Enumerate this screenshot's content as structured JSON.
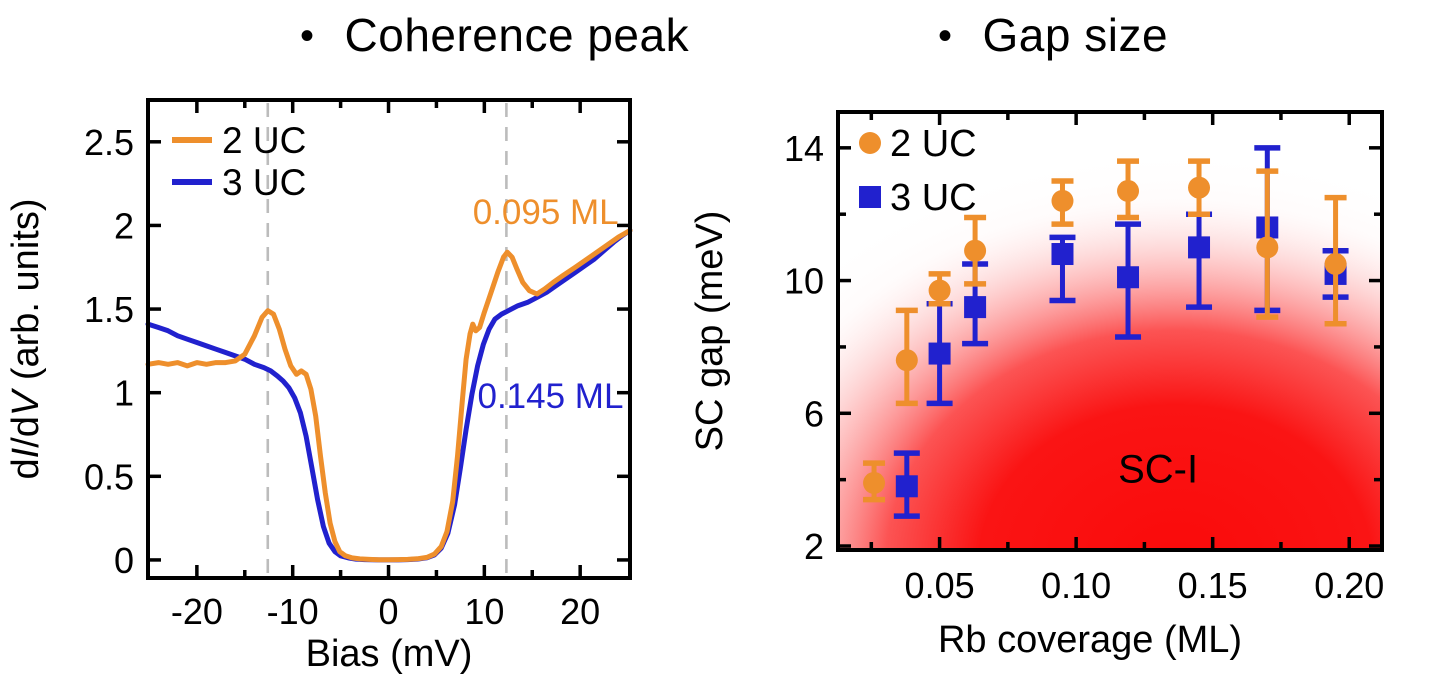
{
  "titles": {
    "bullet": "•",
    "left": "Coherence peak",
    "right": "Gap size"
  },
  "colors": {
    "two_uc": "#EE8F2C",
    "three_uc": "#2121CE",
    "dashed_line": "#BCBCBC",
    "axis": "#000000",
    "red_core": "#FA0A0A",
    "background": "#FFFFFF"
  },
  "chart_data": [
    {
      "type": "line",
      "title": "Coherence peak",
      "xlabel": "Bias (mV)",
      "ylabel": "dI/dV (arb. units)",
      "ylabel_parts": [
        [
          "d",
          false
        ],
        [
          "I",
          true
        ],
        [
          "/d",
          false
        ],
        [
          "V",
          true
        ],
        [
          " (arb. units)",
          false
        ]
      ],
      "xlim": [
        -25.1,
        25.2
      ],
      "ylim": [
        -0.108,
        2.75
      ],
      "grid": false,
      "x_ticks": {
        "major": [
          -20,
          -10,
          0,
          10,
          20
        ],
        "major_labels": [
          "-20",
          "-10",
          "0",
          "10",
          "20"
        ],
        "minor": [
          -15,
          -5,
          5,
          15
        ]
      },
      "y_ticks": {
        "major": [
          0,
          0.5,
          1,
          1.5,
          2,
          2.5
        ],
        "major_labels": [
          "0",
          "0.5",
          "1",
          "1.5",
          "2",
          "2.5"
        ],
        "minor": []
      },
      "legend": {
        "position": "top-left",
        "entries": [
          "2 UC",
          "3 UC"
        ]
      },
      "dashed_vlines": [
        -12.6,
        12.3
      ],
      "annotations": [
        {
          "text": "0.095 ML",
          "x": 16.4,
          "y": 2.08,
          "series": "2 UC"
        },
        {
          "text": "0.145 ML",
          "x": 16.9,
          "y": 0.98,
          "series": "3 UC"
        }
      ],
      "series": [
        {
          "name": "2 UC",
          "color": "two_uc",
          "points": [
            [
              -25.1,
              1.17
            ],
            [
              -24,
              1.18
            ],
            [
              -23,
              1.17
            ],
            [
              -22,
              1.18
            ],
            [
              -21,
              1.16
            ],
            [
              -20,
              1.18
            ],
            [
              -19,
              1.17
            ],
            [
              -18,
              1.18
            ],
            [
              -17,
              1.18
            ],
            [
              -16,
              1.19
            ],
            [
              -15,
              1.23
            ],
            [
              -14,
              1.34
            ],
            [
              -13.2,
              1.45
            ],
            [
              -12.6,
              1.49
            ],
            [
              -12,
              1.47
            ],
            [
              -11.4,
              1.38
            ],
            [
              -10.8,
              1.26
            ],
            [
              -10.2,
              1.16
            ],
            [
              -9.6,
              1.11
            ],
            [
              -9.1,
              1.13
            ],
            [
              -8.6,
              1.11
            ],
            [
              -8.1,
              1.02
            ],
            [
              -7.6,
              0.86
            ],
            [
              -7.1,
              0.62
            ],
            [
              -6.6,
              0.4
            ],
            [
              -6.1,
              0.22
            ],
            [
              -5.6,
              0.11
            ],
            [
              -5.1,
              0.05
            ],
            [
              -4.5,
              0.025
            ],
            [
              -3.8,
              0.012
            ],
            [
              -3,
              0.006
            ],
            [
              -2,
              0.003
            ],
            [
              -1,
              0.001
            ],
            [
              0,
              0.001
            ],
            [
              1,
              0.002
            ],
            [
              2,
              0.003
            ],
            [
              3,
              0.007
            ],
            [
              4,
              0.015
            ],
            [
              4.8,
              0.035
            ],
            [
              5.5,
              0.08
            ],
            [
              6.1,
              0.17
            ],
            [
              6.7,
              0.35
            ],
            [
              7.2,
              0.62
            ],
            [
              7.7,
              0.95
            ],
            [
              8.1,
              1.2
            ],
            [
              8.5,
              1.35
            ],
            [
              8.8,
              1.41
            ],
            [
              9.1,
              1.37
            ],
            [
              9.5,
              1.39
            ],
            [
              10,
              1.48
            ],
            [
              10.7,
              1.6
            ],
            [
              11.4,
              1.72
            ],
            [
              12,
              1.81
            ],
            [
              12.4,
              1.84
            ],
            [
              12.9,
              1.81
            ],
            [
              13.4,
              1.74
            ],
            [
              14,
              1.66
            ],
            [
              14.7,
              1.61
            ],
            [
              15.5,
              1.59
            ],
            [
              16.3,
              1.62
            ],
            [
              17.2,
              1.66
            ],
            [
              18.2,
              1.7
            ],
            [
              19.5,
              1.75
            ],
            [
              21,
              1.81
            ],
            [
              22.5,
              1.87
            ],
            [
              24,
              1.93
            ],
            [
              25.2,
              1.97
            ]
          ]
        },
        {
          "name": "3 UC",
          "color": "three_uc",
          "points": [
            [
              -25.1,
              1.41
            ],
            [
              -24,
              1.39
            ],
            [
              -23,
              1.37
            ],
            [
              -22,
              1.34
            ],
            [
              -21,
              1.32
            ],
            [
              -20,
              1.3
            ],
            [
              -19,
              1.28
            ],
            [
              -18,
              1.26
            ],
            [
              -17,
              1.24
            ],
            [
              -16,
              1.22
            ],
            [
              -15,
              1.2
            ],
            [
              -14,
              1.17
            ],
            [
              -13,
              1.15
            ],
            [
              -12.3,
              1.13
            ],
            [
              -11.6,
              1.1
            ],
            [
              -11,
              1.07
            ],
            [
              -10.4,
              1.03
            ],
            [
              -9.8,
              0.97
            ],
            [
              -9.2,
              0.88
            ],
            [
              -8.6,
              0.74
            ],
            [
              -8,
              0.55
            ],
            [
              -7.4,
              0.36
            ],
            [
              -6.8,
              0.2
            ],
            [
              -6.2,
              0.1
            ],
            [
              -5.6,
              0.05
            ],
            [
              -5,
              0.025
            ],
            [
              -4.2,
              0.012
            ],
            [
              -3.4,
              0.005
            ],
            [
              -2.5,
              0.002
            ],
            [
              -1,
              0
            ],
            [
              0,
              0
            ],
            [
              1,
              0
            ],
            [
              2,
              0.002
            ],
            [
              3,
              0.005
            ],
            [
              4,
              0.013
            ],
            [
              4.8,
              0.03
            ],
            [
              5.5,
              0.07
            ],
            [
              6.2,
              0.16
            ],
            [
              6.9,
              0.33
            ],
            [
              7.5,
              0.55
            ],
            [
              8.1,
              0.78
            ],
            [
              8.7,
              0.99
            ],
            [
              9.3,
              1.16
            ],
            [
              9.9,
              1.29
            ],
            [
              10.5,
              1.38
            ],
            [
              11.1,
              1.44
            ],
            [
              11.8,
              1.47
            ],
            [
              12.5,
              1.49
            ],
            [
              13.5,
              1.52
            ],
            [
              14.5,
              1.54
            ],
            [
              15.5,
              1.57
            ],
            [
              16.5,
              1.6
            ],
            [
              17.5,
              1.64
            ],
            [
              18.5,
              1.68
            ],
            [
              19.5,
              1.72
            ],
            [
              20.5,
              1.76
            ],
            [
              21.5,
              1.8
            ],
            [
              22.5,
              1.85
            ],
            [
              23.5,
              1.9
            ],
            [
              24.4,
              1.94
            ],
            [
              25.2,
              1.97
            ]
          ]
        }
      ]
    },
    {
      "type": "scatter",
      "title": "Gap size",
      "xlabel": "Rb coverage (ML)",
      "ylabel": "SC gap (meV)",
      "xlim": [
        0.0128,
        0.212
      ],
      "ylim": [
        1.88,
        15.08
      ],
      "grid": false,
      "x_ticks": {
        "major": [
          0.05,
          0.1,
          0.15,
          0.2
        ],
        "major_labels": [
          "0.05",
          "0.10",
          "0.15",
          "0.20"
        ],
        "minor": [
          0.025,
          0.075,
          0.125,
          0.175
        ]
      },
      "y_ticks": {
        "major": [
          2,
          6,
          10,
          14
        ],
        "major_labels": [
          "2",
          "6",
          "10",
          "14"
        ],
        "minor": [
          4,
          8,
          12
        ]
      },
      "legend": {
        "position": "top-left",
        "entries": [
          "2 UC",
          "3 UC"
        ]
      },
      "region_label": {
        "text": "SC-I",
        "x": 0.13,
        "y": 4.3
      },
      "background_region": {
        "label": "SC-I",
        "style": "red radial gradient, deepest at bottom center-right, fading to white toward top"
      },
      "series": [
        {
          "name": "2 UC",
          "marker": "circle",
          "color": "two_uc",
          "points": [
            {
              "x": 0.026,
              "y": 3.9,
              "err_lo": 3.4,
              "err_hi": 4.5
            },
            {
              "x": 0.038,
              "y": 7.6,
              "err_lo": 6.3,
              "err_hi": 9.1
            },
            {
              "x": 0.05,
              "y": 9.7,
              "err_lo": 9.3,
              "err_hi": 10.2
            },
            {
              "x": 0.063,
              "y": 10.9,
              "err_lo": 9.9,
              "err_hi": 11.9
            },
            {
              "x": 0.095,
              "y": 12.4,
              "err_lo": 11.7,
              "err_hi": 13.0
            },
            {
              "x": 0.119,
              "y": 12.7,
              "err_lo": 11.9,
              "err_hi": 13.6
            },
            {
              "x": 0.145,
              "y": 12.8,
              "err_lo": 12.0,
              "err_hi": 13.6
            },
            {
              "x": 0.17,
              "y": 11.0,
              "err_lo": 8.9,
              "err_hi": 13.3
            },
            {
              "x": 0.195,
              "y": 10.5,
              "err_lo": 8.7,
              "err_hi": 12.5
            }
          ]
        },
        {
          "name": "3 UC",
          "marker": "square",
          "color": "three_uc",
          "points": [
            {
              "x": 0.038,
              "y": 3.8,
              "err_lo": 2.9,
              "err_hi": 4.8
            },
            {
              "x": 0.05,
              "y": 7.8,
              "err_lo": 6.3,
              "err_hi": 9.3
            },
            {
              "x": 0.063,
              "y": 9.2,
              "err_lo": 8.1,
              "err_hi": 10.5
            },
            {
              "x": 0.095,
              "y": 10.8,
              "err_lo": 9.4,
              "err_hi": 11.3
            },
            {
              "x": 0.119,
              "y": 10.1,
              "err_lo": 8.3,
              "err_hi": 11.7
            },
            {
              "x": 0.145,
              "y": 11.0,
              "err_lo": 9.2,
              "err_hi": 12.0
            },
            {
              "x": 0.17,
              "y": 11.6,
              "err_lo": 9.1,
              "err_hi": 14.0
            },
            {
              "x": 0.195,
              "y": 10.2,
              "err_lo": 9.5,
              "err_hi": 10.9
            }
          ]
        }
      ]
    }
  ]
}
